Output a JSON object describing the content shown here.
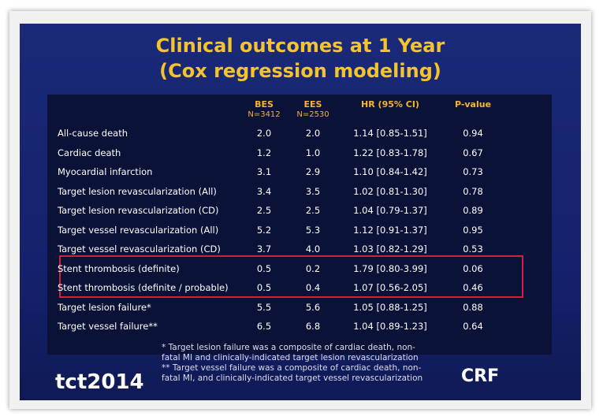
{
  "slide": {
    "title": [
      "Clinical outcomes at 1 Year",
      "(Cox regression modeling)"
    ],
    "table": {
      "columns": [
        {
          "name": "BES",
          "sub": "N=3412"
        },
        {
          "name": "EES",
          "sub": "N=2530"
        },
        {
          "name": "HR (95% CI)"
        },
        {
          "name": "P-value"
        }
      ],
      "rows": [
        [
          "All-cause death",
          "2.0",
          "2.0",
          "1.14 [0.85-1.51]",
          "0.94"
        ],
        [
          "Cardiac death",
          "1.2",
          "1.0",
          "1.22 [0.83-1.78]",
          "0.67"
        ],
        [
          "Myocardial infarction",
          "3.1",
          "2.9",
          "1.10 [0.84-1.42]",
          "0.73"
        ],
        [
          "Target lesion revascularization (All)",
          "3.4",
          "3.5",
          "1.02 [0.81-1.30]",
          "0.78"
        ],
        [
          "Target lesion revascularization (CD)",
          "2.5",
          "2.5",
          "1.04 [0.79-1.37]",
          "0.89"
        ],
        [
          "Target vessel revascularization (All)",
          "5.2",
          "5.3",
          "1.12 [0.91-1.37]",
          "0.95"
        ],
        [
          "Target vessel revascularization (CD)",
          "3.7",
          "4.0",
          "1.03 [0.82-1.29]",
          "0.53"
        ],
        [
          "Stent thrombosis (definite)",
          "0.5",
          "0.2",
          "1.79 [0.80-3.99]",
          "0.06"
        ],
        [
          "Stent thrombosis (definite / probable)",
          "0.5",
          "0.4",
          "1.07 [0.56-2.05]",
          "0.46"
        ],
        [
          "Target lesion failure*",
          "5.5",
          "5.6",
          "1.05 [0.88-1.25]",
          "0.88"
        ],
        [
          "Target vessel failure**",
          "6.5",
          "6.8",
          "1.04 [0.89-1.23]",
          "0.64"
        ]
      ]
    },
    "footnotes": [
      [
        "* Target lesion failure was a composite of cardiac death, non-",
        "fatal MI and clinically-indicated target lesion revascularization"
      ],
      [
        "** Target vessel failure was a composite of cardiac death, non-",
        "fatal MI, and clinically-indicated target vessel revascularization"
      ]
    ],
    "logos": [
      "tct2014",
      "CRF"
    ]
  }
}
